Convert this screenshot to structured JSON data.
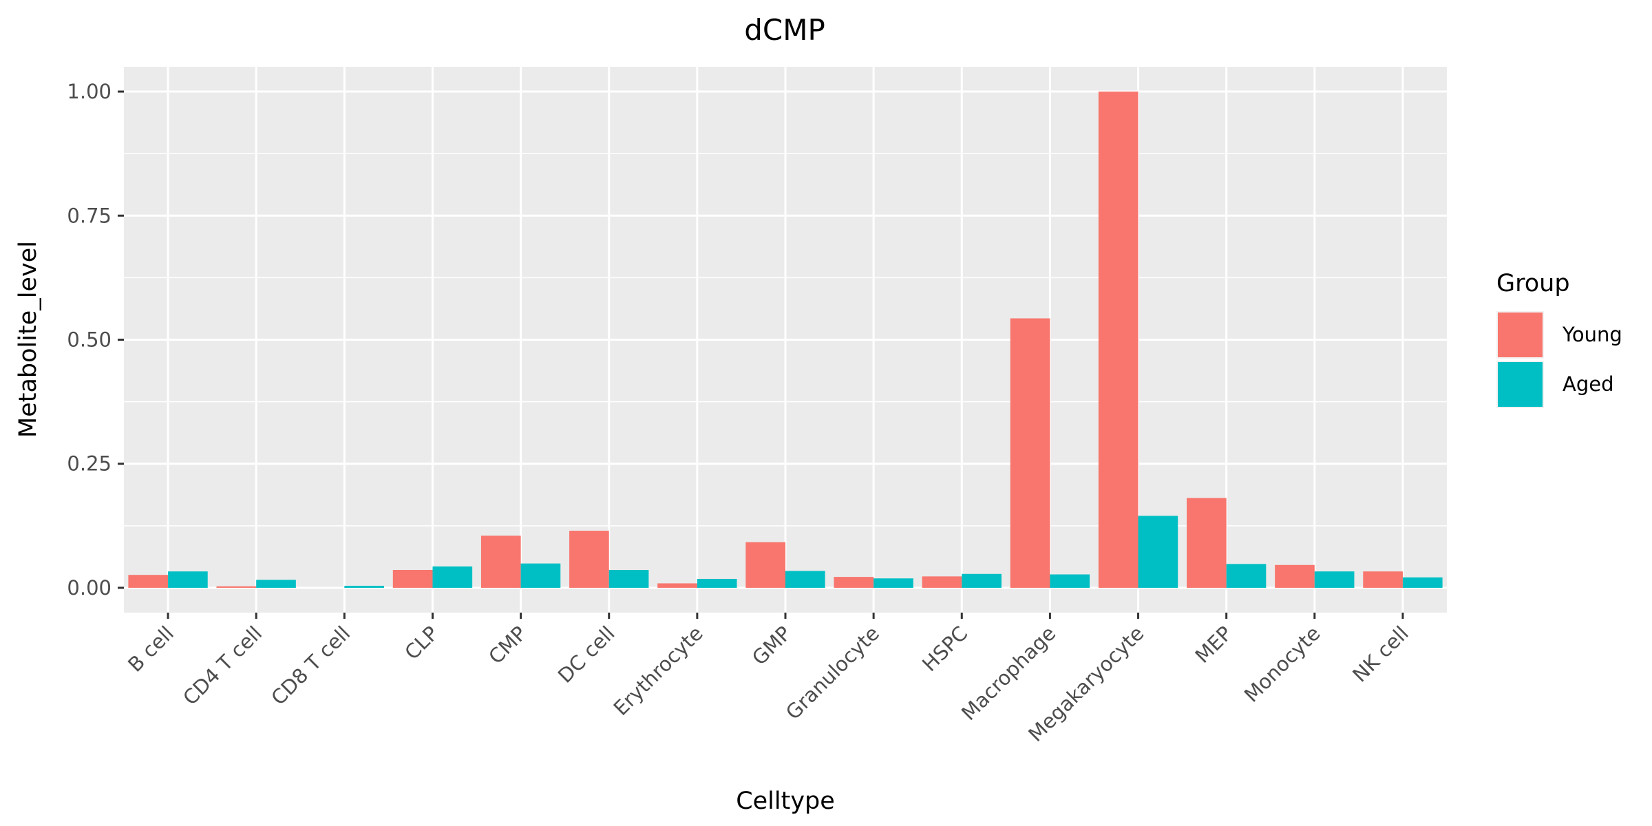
{
  "chart_data": {
    "type": "bar",
    "title": "dCMP",
    "xlabel": "Celltype",
    "ylabel": "Metabolite_level",
    "ylim": [
      -0.05,
      1.05
    ],
    "yticks": [
      0.0,
      0.25,
      0.5,
      0.75,
      1.0
    ],
    "ytick_labels": [
      "0.00",
      "0.25",
      "0.50",
      "0.75",
      "1.00"
    ],
    "grid": true,
    "legend": {
      "title": "Group",
      "position": "right"
    },
    "categories": [
      "B cell",
      "CD4 T cell",
      "CD8 T cell",
      "CLP",
      "CMP",
      "DC cell",
      "Erythrocyte",
      "GMP",
      "Granulocyte",
      "HSPC",
      "Macrophage",
      "Megakaryocyte",
      "MEP",
      "Monocyte",
      "NK cell"
    ],
    "series": [
      {
        "name": "Young",
        "color": "#F8766D",
        "values": [
          0.026,
          0.003,
          0.0,
          0.036,
          0.105,
          0.115,
          0.009,
          0.092,
          0.022,
          0.023,
          0.543,
          1.0,
          0.181,
          0.046,
          0.033
        ]
      },
      {
        "name": "Aged",
        "color": "#00BFC4",
        "values": [
          0.033,
          0.016,
          0.004,
          0.043,
          0.049,
          0.036,
          0.018,
          0.034,
          0.019,
          0.028,
          0.027,
          0.145,
          0.048,
          0.033,
          0.021
        ]
      }
    ]
  }
}
